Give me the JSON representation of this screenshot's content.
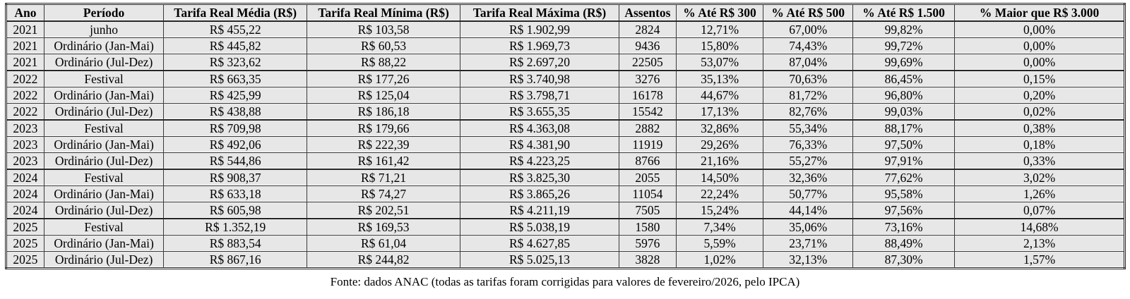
{
  "chart_data": {
    "type": "table",
    "columns": [
      "Ano",
      "Período",
      "Tarifa Real Média (R$)",
      "Tarifa Real Mínima (R$)",
      "Tarifa Real Máxima (R$)",
      "Assentos",
      "% Até R$ 300",
      "% Até R$ 500",
      "% Até R$ 1.500",
      "% Maior que R$ 3.000"
    ],
    "rows": [
      [
        "2021",
        "junho",
        "R$ 455,22",
        "R$ 103,58",
        "R$ 1.902,99",
        "2824",
        "12,71%",
        "67,00%",
        "99,82%",
        "0,00%"
      ],
      [
        "2021",
        "Ordinário (Jan-Mai)",
        "R$ 445,82",
        "R$ 60,53",
        "R$ 1.969,73",
        "9436",
        "15,80%",
        "74,43%",
        "99,72%",
        "0,00%"
      ],
      [
        "2021",
        "Ordinário (Jul-Dez)",
        "R$ 323,62",
        "R$ 88,22",
        "R$ 2.697,20",
        "22505",
        "53,07%",
        "87,04%",
        "99,69%",
        "0,00%"
      ],
      [
        "2022",
        "Festival",
        "R$ 663,35",
        "R$ 177,26",
        "R$ 3.740,98",
        "3276",
        "35,13%",
        "70,63%",
        "86,45%",
        "0,15%"
      ],
      [
        "2022",
        "Ordinário (Jan-Mai)",
        "R$ 425,99",
        "R$ 125,04",
        "R$ 3.798,71",
        "16178",
        "44,67%",
        "81,72%",
        "96,80%",
        "0,20%"
      ],
      [
        "2022",
        "Ordinário (Jul-Dez)",
        "R$ 438,88",
        "R$ 186,18",
        "R$ 3.655,35",
        "15542",
        "17,13%",
        "82,76%",
        "99,03%",
        "0,02%"
      ],
      [
        "2023",
        "Festival",
        "R$ 709,98",
        "R$ 179,66",
        "R$ 4.363,08",
        "2882",
        "32,86%",
        "55,34%",
        "88,17%",
        "0,38%"
      ],
      [
        "2023",
        "Ordinário (Jan-Mai)",
        "R$ 492,06",
        "R$ 222,39",
        "R$ 4.381,90",
        "11919",
        "29,26%",
        "76,33%",
        "97,50%",
        "0,18%"
      ],
      [
        "2023",
        "Ordinário (Jul-Dez)",
        "R$ 544,86",
        "R$ 161,42",
        "R$ 4.223,25",
        "8766",
        "21,16%",
        "55,27%",
        "97,91%",
        "0,33%"
      ],
      [
        "2024",
        "Festival",
        "R$ 908,37",
        "R$ 71,21",
        "R$ 3.825,30",
        "2055",
        "14,50%",
        "32,36%",
        "77,62%",
        "3,02%"
      ],
      [
        "2024",
        "Ordinário (Jan-Mai)",
        "R$ 633,18",
        "R$ 74,27",
        "R$ 3.865,26",
        "11054",
        "22,24%",
        "50,77%",
        "95,58%",
        "1,26%"
      ],
      [
        "2024",
        "Ordinário (Jul-Dez)",
        "R$ 605,98",
        "R$ 202,51",
        "R$ 4.211,19",
        "7505",
        "15,24%",
        "44,14%",
        "97,56%",
        "0,07%"
      ],
      [
        "2025",
        "Festival",
        "R$ 1.352,19",
        "R$ 169,53",
        "R$ 5.038,19",
        "1580",
        "7,34%",
        "35,06%",
        "73,16%",
        "14,68%"
      ],
      [
        "2025",
        "Ordinário (Jan-Mai)",
        "R$ 883,54",
        "R$ 61,04",
        "R$ 4.627,85",
        "5976",
        "5,59%",
        "23,71%",
        "88,49%",
        "2,13%"
      ],
      [
        "2025",
        "Ordinário (Jul-Dez)",
        "R$ 867,16",
        "R$ 244,82",
        "R$ 5.025,13",
        "3828",
        "1,02%",
        "32,13%",
        "87,30%",
        "1,57%"
      ]
    ],
    "source_note": "Fonte: dados ANAC (todas as tarifas foram corrigidas para valores de fevereiro/2026, pelo IPCA)"
  },
  "colors": {
    "cell_bg": "#e7e7e7",
    "border": "#262626",
    "text": "#000000",
    "page_bg": "#ffffff"
  }
}
